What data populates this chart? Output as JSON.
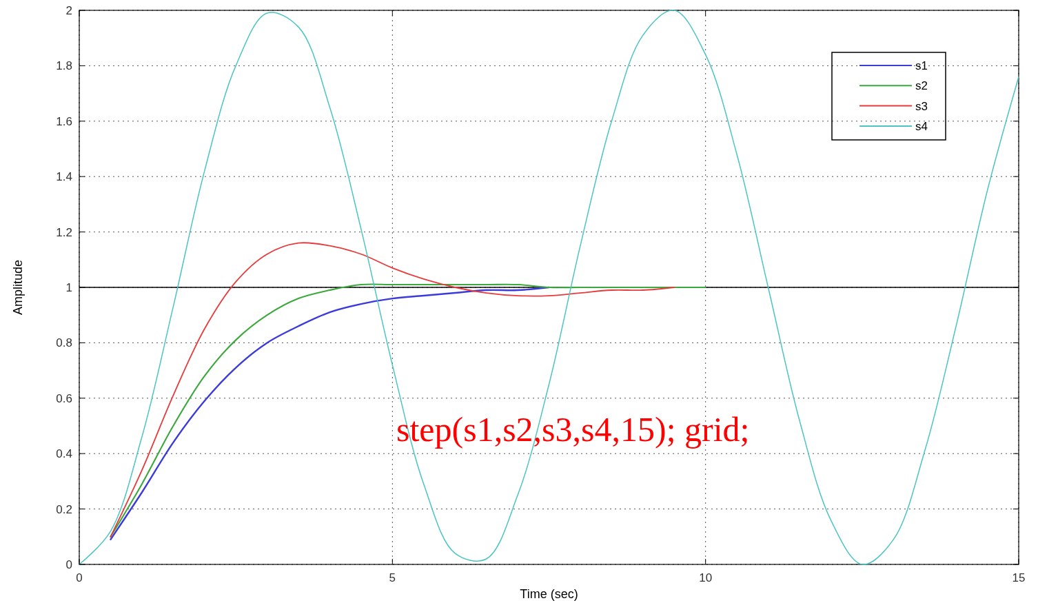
{
  "chart_data": {
    "type": "line",
    "xlabel": "Time (sec)",
    "ylabel": "Amplitude",
    "x": [
      0,
      0.5,
      1,
      1.5,
      2,
      2.5,
      3,
      3.5,
      4,
      4.5,
      5,
      5.5,
      6,
      6.5,
      7,
      7.5,
      8,
      8.5,
      9,
      9.5,
      10,
      10.5,
      11,
      11.5,
      12,
      12.5,
      13,
      13.5,
      14,
      14.5,
      15
    ],
    "series": [
      {
        "name": "s1",
        "color": "#3b3bdb",
        "values": [
          null,
          0.09,
          0.26,
          0.44,
          0.59,
          0.71,
          0.8,
          0.86,
          0.91,
          0.94,
          0.96,
          0.97,
          0.98,
          0.99,
          0.99,
          1,
          null,
          null,
          null,
          null,
          null,
          null,
          null,
          null,
          null,
          null,
          null,
          null,
          null,
          null,
          null
        ]
      },
      {
        "name": "s2",
        "color": "#3aa83a",
        "values": [
          null,
          0.1,
          0.29,
          0.5,
          0.68,
          0.81,
          0.9,
          0.96,
          0.99,
          1.01,
          1.01,
          1.01,
          1.01,
          1.01,
          1.01,
          1,
          1,
          1,
          1,
          1,
          1,
          null,
          null,
          null,
          null,
          null,
          null,
          null,
          null,
          null,
          null
        ]
      },
      {
        "name": "s3",
        "color": "#e83a3a",
        "values": [
          null,
          0.1,
          0.34,
          0.61,
          0.85,
          1.02,
          1.12,
          1.16,
          1.15,
          1.12,
          1.07,
          1.03,
          1,
          0.98,
          0.97,
          0.97,
          0.98,
          0.99,
          0.99,
          1,
          null,
          null,
          null,
          null,
          null,
          null,
          null,
          null,
          null,
          null,
          null
        ]
      },
      {
        "name": "s4",
        "color": "#4cc4c4",
        "values": [
          0,
          0.12,
          0.46,
          0.93,
          1.42,
          1.8,
          1.99,
          1.94,
          1.65,
          1.21,
          0.72,
          0.29,
          0.04,
          0.02,
          0.25,
          0.65,
          1.15,
          1.6,
          1.91,
          2,
          1.84,
          1.48,
          1,
          0.52,
          0.16,
          0,
          0.09,
          0.41,
          0.86,
          1.35,
          1.76
        ]
      }
    ],
    "xlim": [
      0,
      15
    ],
    "xticks": [
      0,
      5,
      10,
      15
    ],
    "ylim": [
      0,
      2
    ],
    "yticks": [
      0,
      0.2,
      0.4,
      0.6,
      0.8,
      1,
      1.2,
      1.4,
      1.6,
      1.8,
      2
    ],
    "ref_lines": [
      {
        "axis": "y",
        "value": 1,
        "color": "#000000",
        "line_style": "solid"
      }
    ],
    "grid": true,
    "legend": "top right",
    "marker": "none",
    "line_style": "solid",
    "annotations": [
      "step(s1,s2,s3,s4,15); grid;"
    ]
  }
}
